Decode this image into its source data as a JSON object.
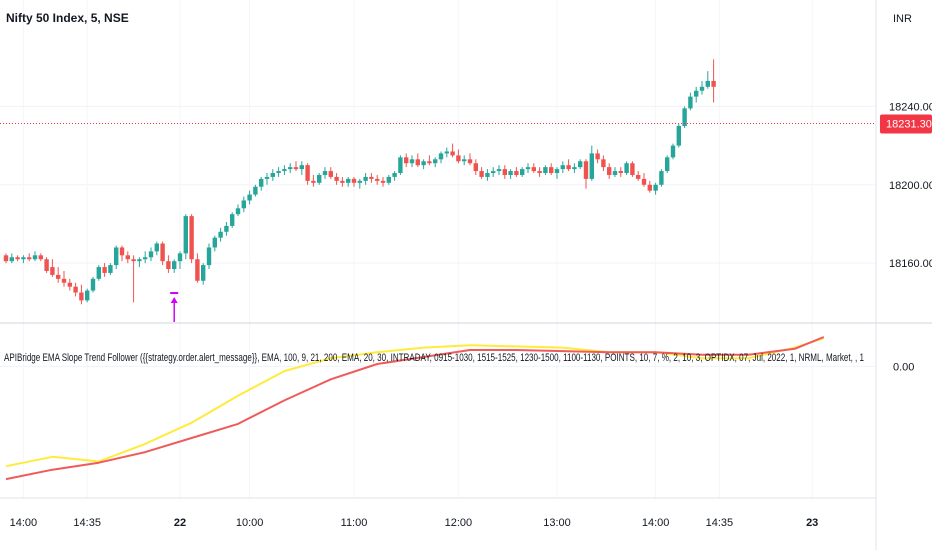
{
  "header": {
    "symbol_title": "Nifty 50 Index, 5, NSE",
    "currency": "INR",
    "last_price_label": "18231.30"
  },
  "indicator": {
    "title": "APIBridge EMA Slope Trend Follower ({{strategy.order.alert_message}}, EMA, 100, 9, 21, 200, EMA, 20, 30, INTRADAY, 0915-1030, 1515-1525, 1230-1500, 1100-1130, POINTS, 10, 7, %, 2, 10, 3, OPTIDX, 07, Jul, 2022, 1, NRML, Market, , 1"
  },
  "colors": {
    "up": "#26a69a",
    "down": "#ef5350",
    "fast_line": "#ffeb3b",
    "slow_line": "#f05a5a",
    "signal": "#d500f9",
    "price_line": "#f23645"
  },
  "chart_data": [
    {
      "type": "candlestick",
      "title": "Nifty 50 Index, 5, NSE",
      "ylim": [
        18132,
        18279
      ],
      "y_ticks": [
        18160,
        18200,
        18240
      ],
      "y_tick_labels": [
        "18160.00",
        "18200.00",
        "18240.00"
      ],
      "x_tick_labels": [
        "14:00",
        "14:35",
        "22",
        "10:00",
        "11:00",
        "12:00",
        "13:00",
        "14:00",
        "14:35",
        "23"
      ],
      "x_tick_bars": [
        3,
        14,
        30,
        42,
        60,
        78,
        95,
        112,
        123,
        139
      ],
      "bold_x_ticks": [
        "22",
        "23"
      ],
      "last_price": 18231.3,
      "signal_marker_bar": 29,
      "ohlc": [
        [
          18164,
          18165,
          18160,
          18161
        ],
        [
          18161,
          18165,
          18160,
          18163
        ],
        [
          18163,
          18164,
          18161,
          18162
        ],
        [
          18162,
          18164,
          18160,
          18163
        ],
        [
          18163,
          18165,
          18161,
          18162
        ],
        [
          18162,
          18166,
          18161,
          18164
        ],
        [
          18164,
          18165,
          18161,
          18162
        ],
        [
          18162,
          18163,
          18155,
          18156
        ],
        [
          18158,
          18162,
          18153,
          18154
        ],
        [
          18154,
          18158,
          18150,
          18152
        ],
        [
          18152,
          18156,
          18148,
          18150
        ],
        [
          18150,
          18152,
          18146,
          18148
        ],
        [
          18148,
          18150,
          18143,
          18145
        ],
        [
          18145,
          18149,
          18139,
          18141
        ],
        [
          18141,
          18147,
          18140,
          18146
        ],
        [
          18146,
          18153,
          18145,
          18152
        ],
        [
          18152,
          18159,
          18151,
          18158
        ],
        [
          18158,
          18160,
          18153,
          18155
        ],
        [
          18155,
          18160,
          18154,
          18159
        ],
        [
          18159,
          18169,
          18157,
          18168
        ],
        [
          18168,
          18169,
          18161,
          18164
        ],
        [
          18164,
          18166,
          18160,
          18162
        ],
        [
          18162,
          18164,
          18140,
          18161
        ],
        [
          18161,
          18163,
          18158,
          18162
        ],
        [
          18162,
          18166,
          18160,
          18163
        ],
        [
          18163,
          18168,
          18161,
          18166
        ],
        [
          18166,
          18171,
          18164,
          18170
        ],
        [
          18170,
          18171,
          18159,
          18161
        ],
        [
          18161,
          18164,
          18155,
          18157
        ],
        [
          18157,
          18162,
          18155,
          18161
        ],
        [
          18161,
          18166,
          18157,
          18165
        ],
        [
          18165,
          18185,
          18162,
          18184
        ],
        [
          18184,
          18185,
          18160,
          18162
        ],
        [
          18162,
          18165,
          18150,
          18151
        ],
        [
          18151,
          18160,
          18149,
          18159
        ],
        [
          18159,
          18170,
          18157,
          18168
        ],
        [
          18168,
          18174,
          18166,
          18173
        ],
        [
          18173,
          18178,
          18171,
          18176
        ],
        [
          18176,
          18181,
          18174,
          18179
        ],
        [
          18179,
          18186,
          18178,
          18185
        ],
        [
          18185,
          18190,
          18184,
          18188
        ],
        [
          18188,
          18194,
          18186,
          18192
        ],
        [
          18192,
          18197,
          18190,
          18195
        ],
        [
          18195,
          18200,
          18194,
          18199
        ],
        [
          18199,
          18204,
          18197,
          18203
        ],
        [
          18203,
          18206,
          18200,
          18204
        ],
        [
          18204,
          18208,
          18202,
          18206
        ],
        [
          18206,
          18209,
          18204,
          18207
        ],
        [
          18207,
          18210,
          18205,
          18208
        ],
        [
          18208,
          18211,
          18206,
          18209
        ],
        [
          18209,
          18212,
          18207,
          18208
        ],
        [
          18208,
          18212,
          18205,
          18210
        ],
        [
          18210,
          18211,
          18200,
          18202
        ],
        [
          18202,
          18205,
          18199,
          18201
        ],
        [
          18201,
          18206,
          18200,
          18205
        ],
        [
          18205,
          18209,
          18203,
          18207
        ],
        [
          18207,
          18209,
          18203,
          18204
        ],
        [
          18204,
          18206,
          18200,
          18202
        ],
        [
          18202,
          18204,
          18199,
          18201
        ],
        [
          18201,
          18204,
          18199,
          18203
        ],
        [
          18203,
          18204,
          18199,
          18201
        ],
        [
          18201,
          18203,
          18198,
          18202
        ],
        [
          18202,
          18206,
          18200,
          18204
        ],
        [
          18204,
          18206,
          18201,
          18203
        ],
        [
          18203,
          18205,
          18200,
          18202
        ],
        [
          18202,
          18204,
          18199,
          18201
        ],
        [
          18201,
          18205,
          18200,
          18204
        ],
        [
          18204,
          18207,
          18202,
          18206
        ],
        [
          18206,
          18215,
          18205,
          18214
        ],
        [
          18214,
          18216,
          18209,
          18211
        ],
        [
          18211,
          18215,
          18209,
          18213
        ],
        [
          18213,
          18216,
          18209,
          18210
        ],
        [
          18210,
          18213,
          18208,
          18212
        ],
        [
          18212,
          18215,
          18210,
          18211
        ],
        [
          18211,
          18214,
          18209,
          18213
        ],
        [
          18213,
          18217,
          18211,
          18216
        ],
        [
          18216,
          18219,
          18214,
          18217
        ],
        [
          18217,
          18221,
          18214,
          18215
        ],
        [
          18215,
          18218,
          18211,
          18212
        ],
        [
          18212,
          18215,
          18210,
          18213
        ],
        [
          18213,
          18216,
          18210,
          18211
        ],
        [
          18211,
          18213,
          18205,
          18207
        ],
        [
          18207,
          18209,
          18203,
          18204
        ],
        [
          18204,
          18208,
          18202,
          18206
        ],
        [
          18206,
          18209,
          18204,
          18207
        ],
        [
          18207,
          18210,
          18205,
          18208
        ],
        [
          18208,
          18210,
          18203,
          18205
        ],
        [
          18205,
          18208,
          18203,
          18207
        ],
        [
          18207,
          18209,
          18204,
          18205
        ],
        [
          18205,
          18209,
          18204,
          18208
        ],
        [
          18208,
          18211,
          18206,
          18209
        ],
        [
          18209,
          18211,
          18206,
          18207
        ],
        [
          18207,
          18209,
          18204,
          18206
        ],
        [
          18206,
          18210,
          18205,
          18209
        ],
        [
          18209,
          18211,
          18205,
          18206
        ],
        [
          18206,
          18209,
          18203,
          18208
        ],
        [
          18208,
          18212,
          18206,
          18210
        ],
        [
          18210,
          18213,
          18207,
          18208
        ],
        [
          18208,
          18211,
          18206,
          18209
        ],
        [
          18209,
          18213,
          18208,
          18212
        ],
        [
          18212,
          18213,
          18198,
          18203
        ],
        [
          18203,
          18220,
          18202,
          18216
        ],
        [
          18216,
          18218,
          18211,
          18213
        ],
        [
          18213,
          18215,
          18207,
          18209
        ],
        [
          18209,
          18211,
          18203,
          18205
        ],
        [
          18205,
          18209,
          18204,
          18207
        ],
        [
          18207,
          18209,
          18204,
          18206
        ],
        [
          18206,
          18212,
          18205,
          18211
        ],
        [
          18211,
          18212,
          18204,
          18205
        ],
        [
          18205,
          18207,
          18202,
          18203
        ],
        [
          18203,
          18206,
          18199,
          18200
        ],
        [
          18200,
          18202,
          18196,
          18197
        ],
        [
          18197,
          18201,
          18195,
          18200
        ],
        [
          18200,
          18208,
          18199,
          18207
        ],
        [
          18207,
          18215,
          18206,
          18214
        ],
        [
          18214,
          18221,
          18213,
          18220
        ],
        [
          18220,
          18231,
          18219,
          18230
        ],
        [
          18230,
          18240,
          18229,
          18239
        ],
        [
          18239,
          18247,
          18238,
          18245
        ],
        [
          18245,
          18250,
          18242,
          18248
        ],
        [
          18248,
          18253,
          18246,
          18250
        ],
        [
          18250,
          18258,
          18249,
          18253
        ],
        [
          18253,
          18264,
          18242,
          18250
        ]
      ]
    },
    {
      "type": "line",
      "title": "APIBridge EMA Slope Trend Follower ({{strategy.order.alert_message}}, EMA, 100, 9, 21, 200, EMA, 20, 30, INTRADAY, 0915-1030, 1515-1525, 1230-1500, 1100-1130, POINTS, 10, 7, %, 2, 10, 3, OPTIDX, 07, Jul, 2022, 1, NRML, Market, , 1",
      "y_ticks": [
        0
      ],
      "y_tick_labels": [
        "0.00"
      ],
      "ylim": [
        -1.07,
        0.31
      ],
      "series": [
        {
          "color": "#ffeb3b",
          "x": [
            0,
            8,
            16,
            24,
            32,
            40,
            48,
            56,
            64,
            72,
            80,
            88,
            96,
            104,
            112,
            120,
            128,
            136,
            141
          ],
          "values": [
            -0.85,
            -0.77,
            -0.81,
            -0.66,
            -0.48,
            -0.25,
            -0.04,
            0.07,
            0.12,
            0.16,
            0.18,
            0.17,
            0.16,
            0.12,
            0.12,
            0.07,
            0.07,
            0.16,
            0.24
          ]
        },
        {
          "color": "#f05a5a",
          "x": [
            0,
            8,
            16,
            24,
            32,
            40,
            48,
            56,
            64,
            72,
            80,
            88,
            96,
            104,
            112,
            120,
            128,
            136,
            141
          ],
          "values": [
            -0.96,
            -0.88,
            -0.82,
            -0.73,
            -0.61,
            -0.49,
            -0.29,
            -0.11,
            0.02,
            0.08,
            0.14,
            0.14,
            0.13,
            0.12,
            0.12,
            0.1,
            0.1,
            0.15,
            0.25
          ]
        }
      ]
    }
  ]
}
